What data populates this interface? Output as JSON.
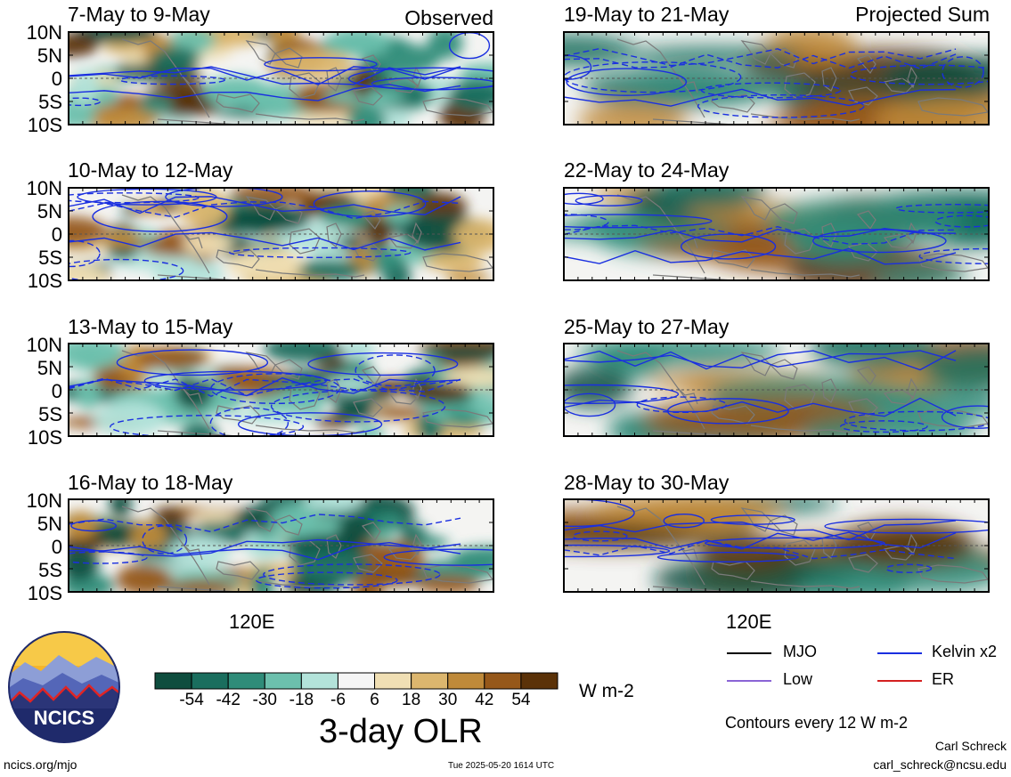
{
  "panels": {
    "observed": [
      {
        "title": "7-May to 9-May",
        "tag": "Observed"
      },
      {
        "title": "10-May to 12-May",
        "tag": ""
      },
      {
        "title": "13-May to 15-May",
        "tag": ""
      },
      {
        "title": "16-May to 18-May",
        "tag": ""
      }
    ],
    "projected": [
      {
        "title": "19-May to 21-May",
        "tag": "Projected Sum"
      },
      {
        "title": "22-May to 24-May",
        "tag": ""
      },
      {
        "title": "25-May to 27-May",
        "tag": ""
      },
      {
        "title": "28-May to 30-May",
        "tag": ""
      }
    ]
  },
  "axes": {
    "y_ticks": [
      "10N",
      "5N",
      "0",
      "5S",
      "10S"
    ],
    "x_label": "120E"
  },
  "colorbar": {
    "ticks": [
      "-54",
      "-42",
      "-30",
      "-18",
      "-6",
      "6",
      "18",
      "30",
      "42",
      "54"
    ],
    "colors": [
      "#0e4d3e",
      "#1a6e5e",
      "#2f8c79",
      "#6cc0ad",
      "#b3e3da",
      "#f5f5f5",
      "#f0dfb4",
      "#dcb66e",
      "#bf8a3a",
      "#96581a",
      "#5b3208"
    ],
    "units": "W m-2",
    "title": "3-day OLR"
  },
  "legend": {
    "items": [
      {
        "label": "MJO",
        "color": "#000000"
      },
      {
        "label": "Kelvin x2",
        "color": "#1a2fe0"
      },
      {
        "label": "Low",
        "color": "#8a64d6"
      },
      {
        "label": "ER",
        "color": "#d42020"
      }
    ],
    "note": "Contours every 12 W m-2"
  },
  "logo": {
    "text": "NCICS"
  },
  "footer": {
    "left": "ncics.org/mjo",
    "center": "Tue 2025-05-20 1614 UTC",
    "author": "Carl Schreck",
    "email": "carl_schreck@ncsu.edu"
  },
  "chart_data": {
    "type": "heatmap",
    "variable": "3-day OLR",
    "units": "W m-2",
    "color_levels": [
      -54,
      -42,
      -30,
      -18,
      -6,
      6,
      18,
      30,
      42,
      54
    ],
    "ylim": [
      "10S",
      "10N"
    ],
    "x_tick_label": "120E",
    "panels": [
      "7-May to 9-May",
      "10-May to 12-May",
      "13-May to 15-May",
      "16-May to 18-May",
      "19-May to 21-May",
      "22-May to 24-May",
      "25-May to 27-May",
      "28-May to 30-May"
    ]
  }
}
